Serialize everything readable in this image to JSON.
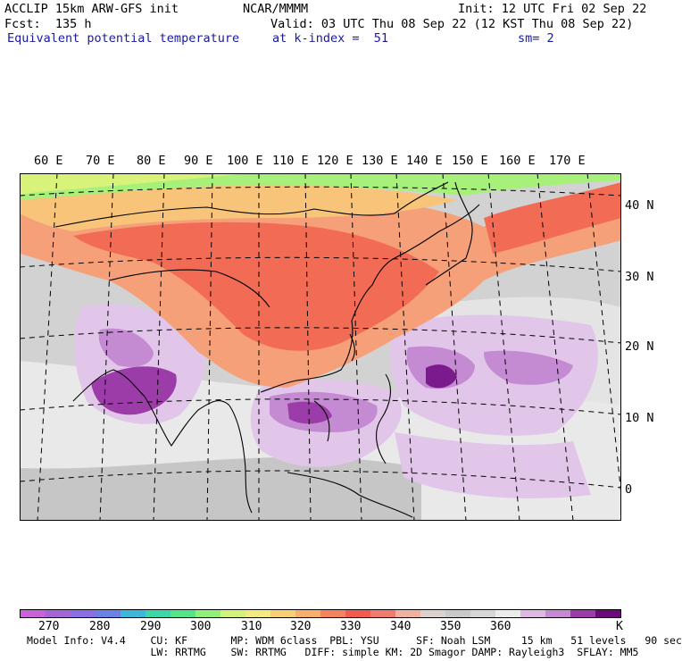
{
  "header": {
    "model": "ACCLIP 15km ARW-GFS init",
    "org": "NCAR/MMMM",
    "init": "Init: 12 UTC Fri 02 Sep 22",
    "fcst": "Fcst:  135 h",
    "valid": "Valid: 03 UTC Thu 08 Sep 22 (12 KST Thu 08 Sep 22)",
    "field": "Equivalent potential temperature",
    "level": "at k-index =  51",
    "smooth": "sm= 2"
  },
  "map": {
    "lon_labels": [
      "60 E",
      "70 E",
      "80 E",
      "90 E",
      "100 E",
      "110 E",
      "120 E",
      "130 E",
      "140 E",
      "150 E",
      "160 E",
      "170 E"
    ],
    "lat_labels": [
      "40 N",
      "30 N",
      "20 N",
      "10 N",
      "0"
    ]
  },
  "colorbar": {
    "unit": "K",
    "labels": [
      "270",
      "280",
      "290",
      "300",
      "310",
      "320",
      "330",
      "340",
      "350",
      "360"
    ],
    "colors": [
      "#c862d8",
      "#a465d9",
      "#8a6fe0",
      "#6a82e2",
      "#3db8d8",
      "#3cd6a8",
      "#52e58a",
      "#8ff07a",
      "#d2f27a",
      "#f4ea80",
      "#f7cf76",
      "#f7ae6e",
      "#f6835f",
      "#f25b50",
      "#f37a6e",
      "#f1b1a0",
      "#dcd1cc",
      "#c9c9c9",
      "#d6d6d6",
      "#ececec",
      "#dcb8e2",
      "#c48ad2",
      "#9c3ca8",
      "#6a0a7a"
    ]
  },
  "footer": {
    "line1": "Model Info: V4.4    CU: KF       MP: WDM 6class  PBL: YSU      SF: Noah LSM     15 km   51 levels   90 sec",
    "line2": "                    LW: RRTMG    SW: RRTMG   DIFF: simple KM: 2D Smagor DAMP: Rayleigh3  SFLAY: MM5"
  }
}
